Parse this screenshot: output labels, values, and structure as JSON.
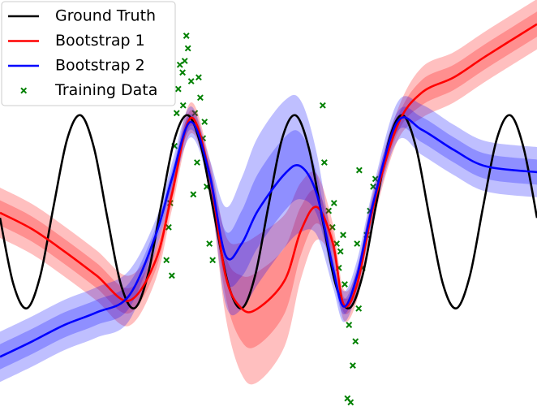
{
  "chart_data": {
    "type": "line",
    "xlim": [
      0,
      10
    ],
    "ylim": [
      -2.06,
      2.19
    ],
    "legend": "upper left",
    "series": [
      {
        "name": "Ground Truth",
        "color": "#000000",
        "x": [
          0,
          0.25,
          0.5,
          0.75,
          1,
          1.25,
          1.5,
          1.75,
          2,
          2.25,
          2.5,
          2.75,
          3,
          3.25,
          3.5,
          3.75,
          4,
          4.25,
          4.5,
          4.75,
          5,
          5.25,
          5.5,
          5.75,
          6,
          6.25,
          6.5,
          6.75,
          7,
          7.25,
          7.5,
          7.75,
          8,
          8.25,
          8.5,
          8.75,
          9,
          9.25,
          9.5,
          9.75,
          10
        ],
        "values": [
          -0.063,
          -0.75,
          -0.998,
          -0.662,
          0.063,
          0.75,
          0.998,
          0.662,
          -0.063,
          -0.75,
          -0.998,
          -0.662,
          0.063,
          0.75,
          0.998,
          0.662,
          -0.063,
          -0.75,
          -0.998,
          -0.662,
          0.063,
          0.75,
          0.998,
          0.662,
          -0.063,
          -0.75,
          -0.998,
          -0.662,
          0.063,
          0.75,
          0.998,
          0.662,
          -0.063,
          -0.75,
          -0.998,
          -0.662,
          0.063,
          0.75,
          0.998,
          0.662,
          -0.063
        ]
      },
      {
        "name": "Bootstrap 1",
        "color": "#ff0000",
        "x": [
          0,
          0.6,
          1.2,
          1.8,
          2.4,
          2.9,
          3.2,
          3.55,
          3.9,
          4.2,
          4.5,
          4.8,
          5.3,
          5.6,
          5.9,
          6.2,
          6.4,
          6.65,
          6.95,
          7.4,
          7.85,
          8.45,
          9.05,
          10
        ],
        "values": [
          -0.01,
          -0.18,
          -0.41,
          -0.66,
          -0.92,
          -0.5,
          0.18,
          0.97,
          0.39,
          -0.66,
          -1,
          -1,
          -0.71,
          -0.2,
          0.05,
          -0.33,
          -0.96,
          -0.75,
          0.05,
          0.89,
          1.23,
          1.39,
          1.61,
          1.94
        ],
        "std": [
          0.13,
          0.13,
          0.13,
          0.13,
          0.13,
          0.1,
          0.08,
          0.08,
          0.08,
          0.21,
          0.34,
          0.38,
          0.34,
          0.25,
          0.17,
          0.1,
          0.08,
          0.08,
          0.08,
          0.08,
          0.13,
          0.13,
          0.13,
          0.13
        ]
      },
      {
        "name": "Bootstrap 2",
        "color": "#0000ff",
        "x": [
          0,
          0.6,
          1.2,
          1.8,
          2.4,
          2.9,
          3.2,
          3.55,
          3.9,
          4.2,
          4.5,
          4.8,
          5.3,
          5.6,
          5.9,
          6.2,
          6.4,
          6.65,
          6.95,
          7.4,
          7.85,
          8.45,
          9.05,
          10
        ],
        "values": [
          -1.5,
          -1.34,
          -1.17,
          -1.04,
          -0.87,
          -0.24,
          0.34,
          0.93,
          0.39,
          -0.45,
          -0.33,
          0.01,
          0.39,
          0.47,
          0.18,
          -0.58,
          -0.98,
          -0.66,
          0.09,
          0.93,
          0.85,
          0.64,
          0.47,
          0.41
        ],
        "std": [
          0.13,
          0.13,
          0.13,
          0.13,
          0.13,
          0.08,
          0.08,
          0.08,
          0.08,
          0.25,
          0.34,
          0.38,
          0.38,
          0.34,
          0.21,
          0.1,
          0.08,
          0.08,
          0.08,
          0.1,
          0.13,
          0.13,
          0.13,
          0.13
        ]
      },
      {
        "name": "Training Data",
        "type": "scatter",
        "color": "#008000",
        "x": [
          3.1,
          3.17,
          3.25,
          3.32,
          3.4,
          3.44,
          3.5,
          3.47,
          3.56,
          3.63,
          3.67,
          3.73,
          3.78,
          3.85,
          3.9,
          3.96,
          3.2,
          3.29,
          3.35,
          3.7,
          3.81,
          3.14,
          3.6,
          3.41,
          6.01,
          6.69,
          6.04,
          6.12,
          6.19,
          6.27,
          6.34,
          6.42,
          6.5,
          6.57,
          6.47,
          6.53,
          6.62,
          6.68,
          6.75,
          6.83,
          6.89,
          6.95,
          6.99,
          6.31,
          6.39,
          6.65,
          6.22
        ],
        "values": [
          -0.5,
          0.09,
          0.68,
          1.27,
          1.44,
          1.56,
          1.69,
          1.82,
          1.35,
          1.02,
          0.51,
          1.18,
          0.76,
          0.26,
          -0.33,
          -0.5,
          -0.66,
          1.02,
          1.52,
          1.39,
          0.93,
          -0.16,
          0.18,
          1.1,
          1.1,
          0.43,
          0.51,
          0.01,
          -0.16,
          -0.33,
          -0.41,
          -0.75,
          -1.17,
          -1.59,
          -1.93,
          -1.97,
          -1.34,
          -1,
          -0.58,
          -0.24,
          0.01,
          0.26,
          0.34,
          -0.58,
          -0.24,
          -0.33,
          0.09
        ]
      }
    ]
  }
}
